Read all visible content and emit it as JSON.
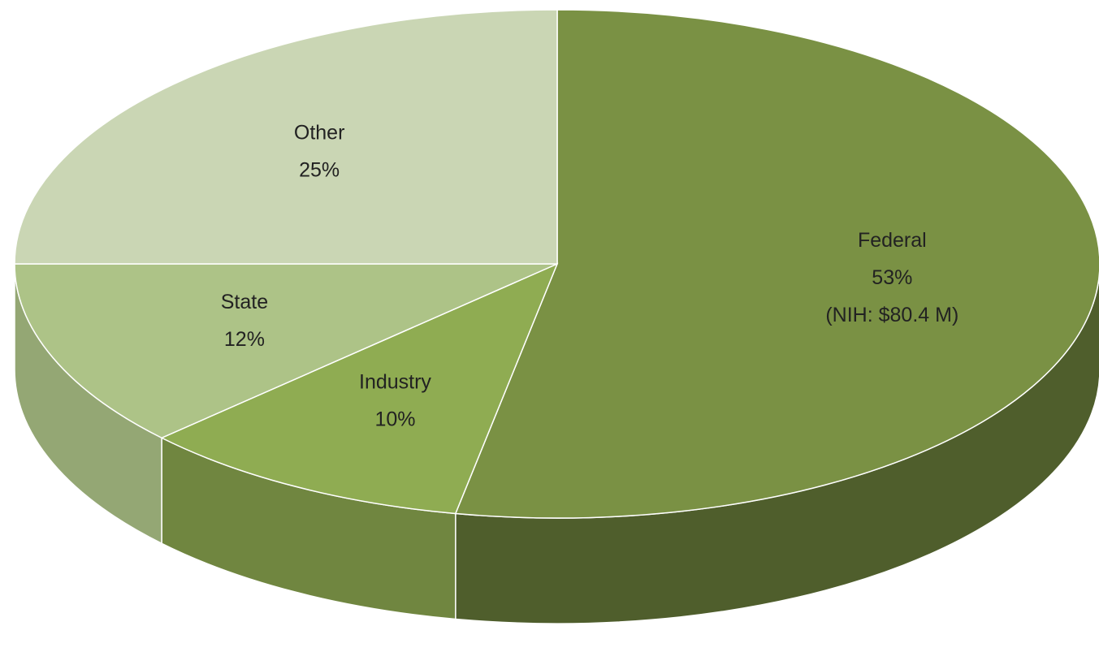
{
  "chart_data": {
    "type": "pie",
    "categories": [
      "Federal",
      "Industry",
      "State",
      "Other"
    ],
    "values": [
      53,
      10,
      12,
      25
    ],
    "value_labels": [
      "53%",
      "10%",
      "12%",
      "25%"
    ],
    "colors": [
      "#7a9144",
      "#8fac52",
      "#adc387",
      "#cad6b4"
    ],
    "annotation": "(NIH: $80.4 M)",
    "three_d": true
  }
}
